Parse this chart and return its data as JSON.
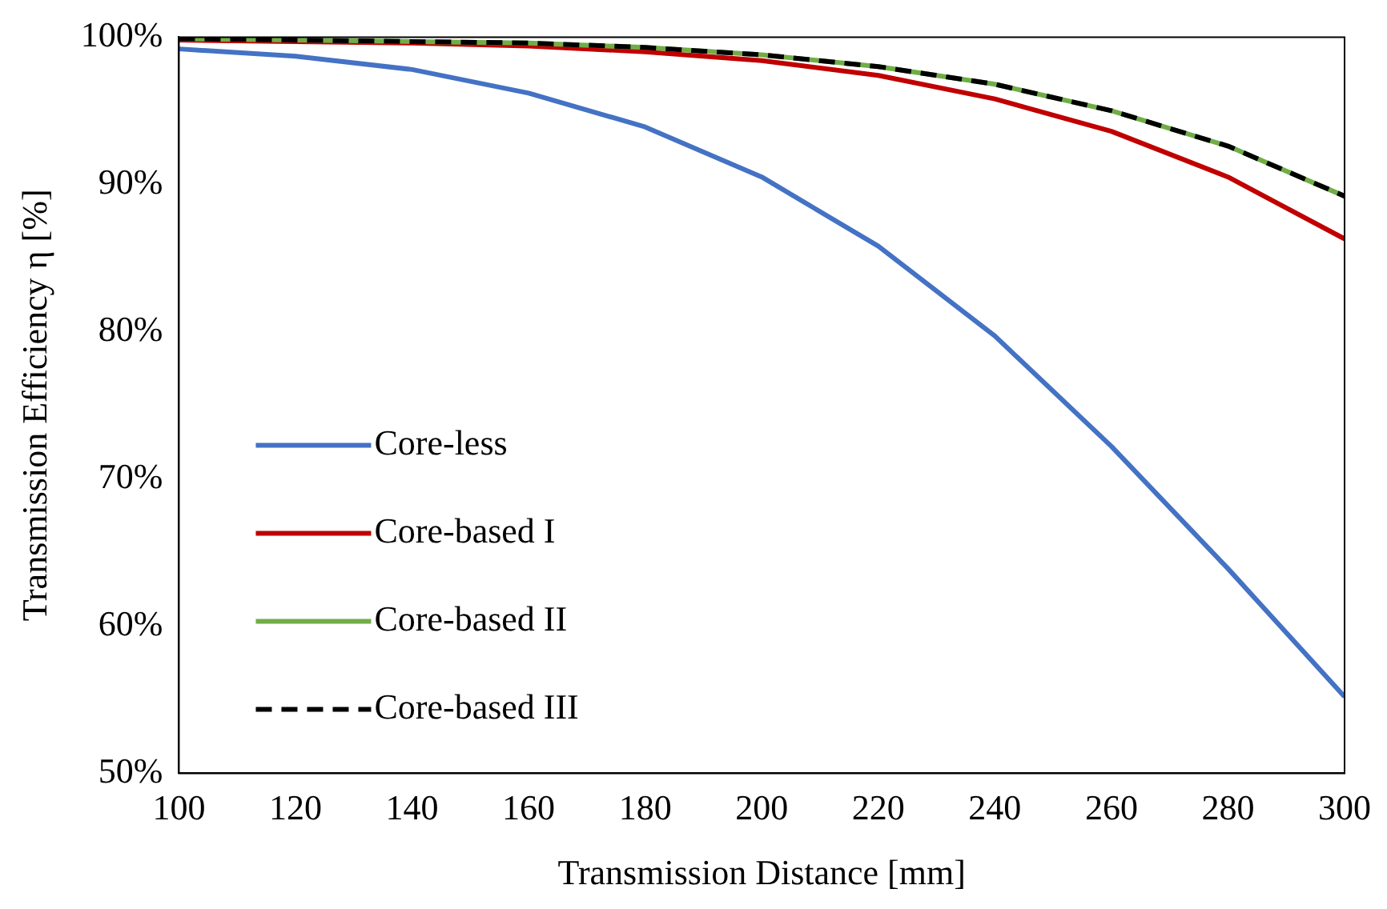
{
  "chart_data": {
    "type": "line",
    "xlabel": "Transmission Distance [mm]",
    "ylabel": "Transmission Efficiency η [%]",
    "x": [
      100,
      120,
      140,
      160,
      180,
      200,
      220,
      240,
      260,
      280,
      300
    ],
    "xlim": [
      100,
      300
    ],
    "xticks": [
      100,
      120,
      140,
      160,
      180,
      200,
      220,
      240,
      260,
      280,
      300
    ],
    "ylim": [
      50,
      100
    ],
    "yticks": [
      {
        "value": 50,
        "label": "50%"
      },
      {
        "value": 60,
        "label": "60%"
      },
      {
        "value": 70,
        "label": "70%"
      },
      {
        "value": 80,
        "label": "80%"
      },
      {
        "value": 90,
        "label": "90%"
      },
      {
        "value": 100,
        "label": "100%"
      }
    ],
    "grid": false,
    "legend": "bottom left",
    "marker": "none",
    "series": [
      {
        "name": "Core-less",
        "color": "#4472c4",
        "line_style": "solid",
        "values": [
          99.2,
          98.7,
          97.8,
          96.2,
          93.9,
          90.5,
          85.8,
          79.7,
          72.2,
          63.9,
          55.2
        ]
      },
      {
        "name": "Core-based I",
        "color": "#c00000",
        "line_style": "solid",
        "values": [
          99.8,
          99.7,
          99.6,
          99.4,
          99.0,
          98.4,
          97.4,
          95.8,
          93.6,
          90.5,
          86.3
        ]
      },
      {
        "name": "Core-based II",
        "color": "#70ad47",
        "line_style": "solid",
        "values": [
          99.9,
          99.8,
          99.7,
          99.6,
          99.3,
          98.8,
          98.0,
          96.8,
          95.0,
          92.6,
          89.2
        ]
      },
      {
        "name": "Core-based III",
        "color": "#000000",
        "line_style": "dashed",
        "values": [
          99.9,
          99.8,
          99.7,
          99.6,
          99.3,
          98.8,
          98.0,
          96.8,
          95.0,
          92.6,
          89.2
        ]
      }
    ]
  }
}
